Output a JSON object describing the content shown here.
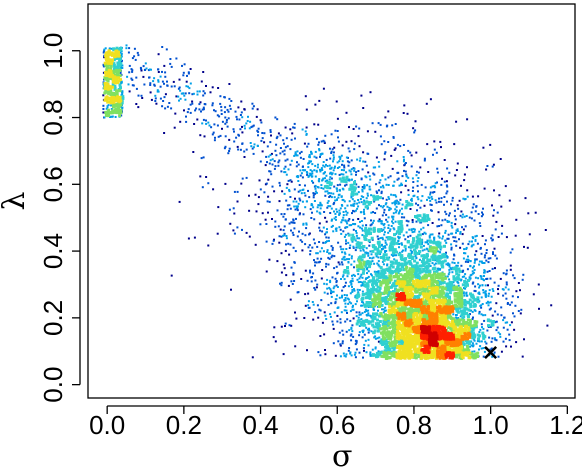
{
  "chart_data": {
    "type": "scatter",
    "title": "",
    "xlabel": "σ",
    "ylabel": "λ",
    "xlim": [
      -0.05,
      1.22
    ],
    "ylim": [
      -0.04,
      1.14
    ],
    "xticks": [
      0.0,
      0.2,
      0.4,
      0.6,
      0.8,
      1.0,
      1.2
    ],
    "xtick_labels": [
      "0.0",
      "0.2",
      "0.4",
      "0.6",
      "0.8",
      "1.0",
      "1.2"
    ],
    "yticks": [
      0.0,
      0.2,
      0.4,
      0.6,
      0.8,
      1.0
    ],
    "ytick_labels": [
      "0.0",
      "0.2",
      "0.4",
      "0.6",
      "0.8",
      "1.0"
    ],
    "grid": false,
    "legend": "none",
    "density_colors": [
      "#00008b",
      "#0050d0",
      "#00a0e8",
      "#30d0d0",
      "#80e060",
      "#f0e020",
      "#ff8000",
      "#ff2000",
      "#d00000"
    ],
    "density_clusters": [
      {
        "cx": 0.86,
        "cy": 0.14,
        "sx": 0.065,
        "sy": 0.035,
        "weight": "peak"
      },
      {
        "cx": 0.82,
        "cy": 0.22,
        "sx": 0.09,
        "sy": 0.08,
        "weight": "high"
      },
      {
        "cx": 0.78,
        "cy": 0.32,
        "sx": 0.13,
        "sy": 0.12,
        "weight": "medium"
      },
      {
        "cx": 0.65,
        "cy": 0.55,
        "sx": 0.15,
        "sy": 0.12,
        "weight": "tail"
      },
      {
        "cx": 0.25,
        "cy": 0.85,
        "sx": 0.15,
        "sy": 0.07,
        "weight": "arm"
      },
      {
        "cx": 0.01,
        "cy": 0.9,
        "sx": 0.015,
        "sy": 0.06,
        "weight": "band"
      }
    ],
    "marker": {
      "x": 1.0,
      "y": 0.1,
      "symbol": "×",
      "color": "#000000"
    }
  }
}
